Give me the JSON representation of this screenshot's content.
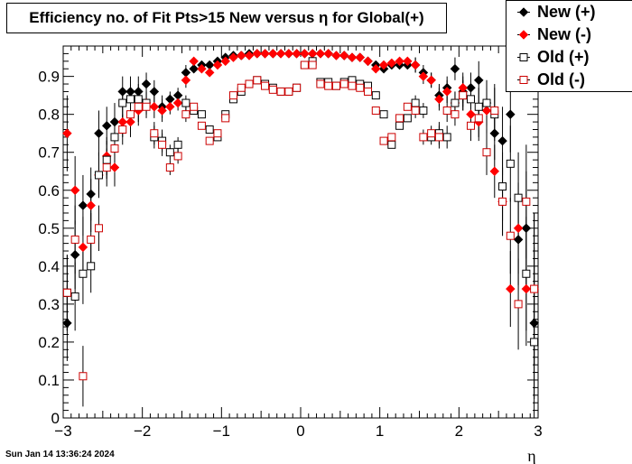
{
  "title": "Efficiency no. of Fit Pts>15 New versus η for Global(+)",
  "timestamp": "Sun Jan 14 13:36:24 2024",
  "legend": [
    {
      "label": "New (+)",
      "color": "#000000",
      "marker": "diamond-filled"
    },
    {
      "label": "New (-)",
      "color": "#ff0000",
      "marker": "diamond-filled"
    },
    {
      "label": "Old (+)",
      "color": "#000000",
      "marker": "square-open"
    },
    {
      "label": "Old (-)",
      "color": "#cc0000",
      "marker": "square-open"
    }
  ],
  "chart_data": {
    "type": "scatter",
    "title": "Efficiency no. of Fit Pts>15 New versus η for Global(+)",
    "xlabel": "η",
    "ylabel": "",
    "xlim": [
      -3,
      3
    ],
    "ylim": [
      0,
      0.98
    ],
    "xticks": [
      "−3",
      "−2",
      "−1",
      "0",
      "1",
      "2",
      "3"
    ],
    "yticks": [
      "0",
      "0.1",
      "0.2",
      "0.3",
      "0.4",
      "0.5",
      "0.6",
      "0.7",
      "0.8",
      "0.9"
    ],
    "grid": false,
    "legend_position": "top-right",
    "series": [
      {
        "name": "New (+)",
        "color": "#000000",
        "marker": "diamond-filled",
        "x": [
          -2.95,
          -2.85,
          -2.75,
          -2.65,
          -2.55,
          -2.45,
          -2.35,
          -2.25,
          -2.15,
          -2.05,
          -1.95,
          -1.85,
          -1.75,
          -1.65,
          -1.55,
          -1.45,
          -1.35,
          -1.25,
          -1.15,
          -1.05,
          -0.95,
          -0.85,
          -0.75,
          -0.65,
          -0.55,
          -0.45,
          -0.35,
          -0.25,
          -0.15,
          -0.05,
          0.05,
          0.15,
          0.25,
          0.35,
          0.45,
          0.55,
          0.65,
          0.75,
          0.85,
          0.95,
          1.05,
          1.15,
          1.25,
          1.35,
          1.45,
          1.55,
          1.65,
          1.75,
          1.85,
          1.95,
          2.05,
          2.15,
          2.25,
          2.35,
          2.45,
          2.55,
          2.65,
          2.75,
          2.85,
          2.95
        ],
        "y": [
          0.25,
          0.43,
          0.56,
          0.59,
          0.75,
          0.77,
          0.78,
          0.86,
          0.86,
          0.86,
          0.88,
          0.86,
          0.82,
          0.84,
          0.85,
          0.91,
          0.92,
          0.93,
          0.93,
          0.94,
          0.95,
          0.955,
          0.955,
          0.96,
          0.96,
          0.96,
          0.96,
          0.96,
          0.96,
          0.96,
          0.96,
          0.96,
          0.96,
          0.96,
          0.955,
          0.955,
          0.95,
          0.95,
          0.94,
          0.93,
          0.92,
          0.93,
          0.93,
          0.93,
          0.93,
          0.91,
          0.89,
          0.85,
          0.87,
          0.92,
          0.86,
          0.87,
          0.89,
          0.83,
          0.75,
          0.73,
          0.8,
          0.47,
          0.5,
          0.25
        ],
        "yerr": [
          0.1,
          0.09,
          0.08,
          0.07,
          0.06,
          0.05,
          0.05,
          0.04,
          0.04,
          0.04,
          0.03,
          0.03,
          0.03,
          0.02,
          0.02,
          0.02,
          0.01,
          0.01,
          0.01,
          0.01,
          0.005,
          0.005,
          0.005,
          0.005,
          0.005,
          0.005,
          0.005,
          0.005,
          0.005,
          0.005,
          0.005,
          0.005,
          0.005,
          0.005,
          0.005,
          0.005,
          0.005,
          0.005,
          0.005,
          0.01,
          0.01,
          0.01,
          0.01,
          0.01,
          0.02,
          0.02,
          0.02,
          0.03,
          0.03,
          0.03,
          0.04,
          0.04,
          0.05,
          0.06,
          0.07,
          0.09,
          0.1,
          0.12,
          0.15,
          0.2
        ]
      },
      {
        "name": "New (-)",
        "color": "#ff0000",
        "marker": "diamond-filled",
        "x": [
          -2.95,
          -2.85,
          -2.75,
          -2.65,
          -2.55,
          -2.45,
          -2.35,
          -2.25,
          -2.15,
          -2.05,
          -1.95,
          -1.85,
          -1.75,
          -1.65,
          -1.55,
          -1.45,
          -1.35,
          -1.25,
          -1.15,
          -1.05,
          -0.95,
          -0.85,
          -0.75,
          -0.65,
          -0.55,
          -0.45,
          -0.35,
          -0.25,
          -0.15,
          -0.05,
          0.05,
          0.15,
          0.25,
          0.35,
          0.45,
          0.55,
          0.65,
          0.75,
          0.85,
          0.95,
          1.05,
          1.15,
          1.25,
          1.35,
          1.45,
          1.55,
          1.65,
          1.75,
          1.85,
          1.95,
          2.05,
          2.15,
          2.25,
          2.35,
          2.45,
          2.55,
          2.65,
          2.75,
          2.85,
          2.95
        ],
        "y": [
          0.75,
          0.6,
          0.45,
          0.56,
          0.64,
          0.69,
          0.66,
          0.78,
          0.78,
          0.81,
          0.83,
          0.82,
          0.81,
          0.82,
          0.83,
          0.89,
          0.94,
          0.92,
          0.91,
          0.93,
          0.94,
          0.95,
          0.955,
          0.955,
          0.96,
          0.96,
          0.96,
          0.96,
          0.96,
          0.96,
          0.96,
          0.96,
          0.96,
          0.96,
          0.955,
          0.955,
          0.95,
          0.95,
          0.94,
          0.92,
          0.93,
          0.935,
          0.94,
          0.94,
          0.93,
          0.9,
          0.89,
          0.84,
          0.86,
          0.83,
          0.87,
          0.8,
          0.78,
          0.81,
          0.65,
          0.57,
          0.34,
          0.5,
          0.34,
          0.34
        ],
        "yerr": [
          0.1,
          0.09,
          0.08,
          0.07,
          0.06,
          0.05,
          0.05,
          0.04,
          0.04,
          0.04,
          0.03,
          0.03,
          0.03,
          0.02,
          0.02,
          0.02,
          0.01,
          0.01,
          0.01,
          0.01,
          0.005,
          0.005,
          0.005,
          0.005,
          0.005,
          0.005,
          0.005,
          0.005,
          0.005,
          0.005,
          0.005,
          0.005,
          0.005,
          0.005,
          0.005,
          0.005,
          0.005,
          0.005,
          0.005,
          0.01,
          0.01,
          0.01,
          0.01,
          0.01,
          0.02,
          0.02,
          0.02,
          0.03,
          0.03,
          0.03,
          0.04,
          0.04,
          0.05,
          0.06,
          0.07,
          0.09,
          0.1,
          0.12,
          0.15,
          0.2
        ]
      },
      {
        "name": "Old (+)",
        "color": "#000000",
        "marker": "square-open",
        "x": [
          -2.95,
          -2.85,
          -2.75,
          -2.65,
          -2.55,
          -2.45,
          -2.35,
          -2.25,
          -2.15,
          -2.05,
          -1.95,
          -1.85,
          -1.75,
          -1.65,
          -1.55,
          -1.45,
          -1.35,
          -1.25,
          -1.15,
          -1.05,
          -0.95,
          -0.85,
          -0.75,
          -0.65,
          -0.55,
          -0.45,
          -0.35,
          -0.25,
          -0.15,
          -0.05,
          0.05,
          0.15,
          0.25,
          0.35,
          0.45,
          0.55,
          0.65,
          0.75,
          0.85,
          0.95,
          1.05,
          1.15,
          1.25,
          1.35,
          1.45,
          1.55,
          1.65,
          1.75,
          1.85,
          1.95,
          2.05,
          2.15,
          2.25,
          2.35,
          2.45,
          2.55,
          2.65,
          2.75,
          2.85,
          2.95
        ],
        "y": [
          0.33,
          0.32,
          0.38,
          0.4,
          0.64,
          0.68,
          0.74,
          0.83,
          0.84,
          0.84,
          0.83,
          0.74,
          0.73,
          0.7,
          0.72,
          0.83,
          0.81,
          0.8,
          0.76,
          0.74,
          0.8,
          0.84,
          0.86,
          0.88,
          0.89,
          0.88,
          0.87,
          0.86,
          0.86,
          0.87,
          0.93,
          0.94,
          0.885,
          0.885,
          0.875,
          0.885,
          0.89,
          0.88,
          0.875,
          0.85,
          0.8,
          0.72,
          0.77,
          0.79,
          0.83,
          0.81,
          0.74,
          0.75,
          0.74,
          0.83,
          0.85,
          0.84,
          0.82,
          0.83,
          0.8,
          0.61,
          0.67,
          0.58,
          0.38,
          0.2
        ],
        "yerr": [
          0.1,
          0.09,
          0.08,
          0.07,
          0.06,
          0.05,
          0.05,
          0.04,
          0.04,
          0.04,
          0.03,
          0.03,
          0.03,
          0.02,
          0.02,
          0.02,
          0.01,
          0.01,
          0.01,
          0.01,
          0.005,
          0.005,
          0.005,
          0.005,
          0.005,
          0.005,
          0.005,
          0.005,
          0.005,
          0.005,
          0.005,
          0.005,
          0.005,
          0.005,
          0.005,
          0.005,
          0.005,
          0.005,
          0.005,
          0.01,
          0.01,
          0.01,
          0.01,
          0.01,
          0.02,
          0.02,
          0.02,
          0.03,
          0.03,
          0.03,
          0.04,
          0.04,
          0.05,
          0.06,
          0.07,
          0.09,
          0.1,
          0.12,
          0.15,
          0.2
        ]
      },
      {
        "name": "Old (-)",
        "color": "#cc0000",
        "marker": "square-open",
        "x": [
          -2.95,
          -2.85,
          -2.75,
          -2.65,
          -2.55,
          -2.45,
          -2.35,
          -2.25,
          -2.15,
          -2.05,
          -1.95,
          -1.85,
          -1.75,
          -1.65,
          -1.55,
          -1.45,
          -1.35,
          -1.25,
          -1.15,
          -1.05,
          -0.95,
          -0.85,
          -0.75,
          -0.65,
          -0.55,
          -0.45,
          -0.35,
          -0.25,
          -0.15,
          -0.05,
          0.05,
          0.15,
          0.25,
          0.35,
          0.45,
          0.55,
          0.65,
          0.75,
          0.85,
          0.95,
          1.05,
          1.15,
          1.25,
          1.35,
          1.45,
          1.55,
          1.65,
          1.75,
          1.85,
          1.95,
          2.05,
          2.15,
          2.25,
          2.35,
          2.45,
          2.55,
          2.65,
          2.75,
          2.85,
          2.95
        ],
        "y": [
          0.33,
          0.47,
          0.11,
          0.47,
          0.5,
          0.66,
          0.71,
          0.76,
          0.8,
          0.82,
          0.82,
          0.75,
          0.72,
          0.66,
          0.69,
          0.8,
          0.82,
          0.77,
          0.73,
          0.75,
          0.79,
          0.85,
          0.87,
          0.88,
          0.89,
          0.875,
          0.865,
          0.86,
          0.86,
          0.87,
          0.93,
          0.93,
          0.88,
          0.875,
          0.875,
          0.88,
          0.875,
          0.87,
          0.86,
          0.81,
          0.73,
          0.74,
          0.79,
          0.82,
          0.81,
          0.74,
          0.75,
          0.74,
          0.81,
          0.8,
          0.85,
          0.77,
          0.79,
          0.7,
          0.81,
          0.57,
          0.48,
          0.3,
          0.57,
          0.34
        ],
        "yerr": [
          0.1,
          0.09,
          0.08,
          0.07,
          0.06,
          0.05,
          0.05,
          0.04,
          0.04,
          0.04,
          0.03,
          0.03,
          0.03,
          0.02,
          0.02,
          0.02,
          0.01,
          0.01,
          0.01,
          0.01,
          0.005,
          0.005,
          0.005,
          0.005,
          0.005,
          0.005,
          0.005,
          0.005,
          0.005,
          0.005,
          0.005,
          0.005,
          0.005,
          0.005,
          0.005,
          0.005,
          0.005,
          0.005,
          0.005,
          0.01,
          0.01,
          0.01,
          0.01,
          0.01,
          0.02,
          0.02,
          0.02,
          0.03,
          0.03,
          0.03,
          0.04,
          0.04,
          0.05,
          0.06,
          0.07,
          0.09,
          0.1,
          0.12,
          0.15,
          0.2
        ]
      }
    ]
  }
}
